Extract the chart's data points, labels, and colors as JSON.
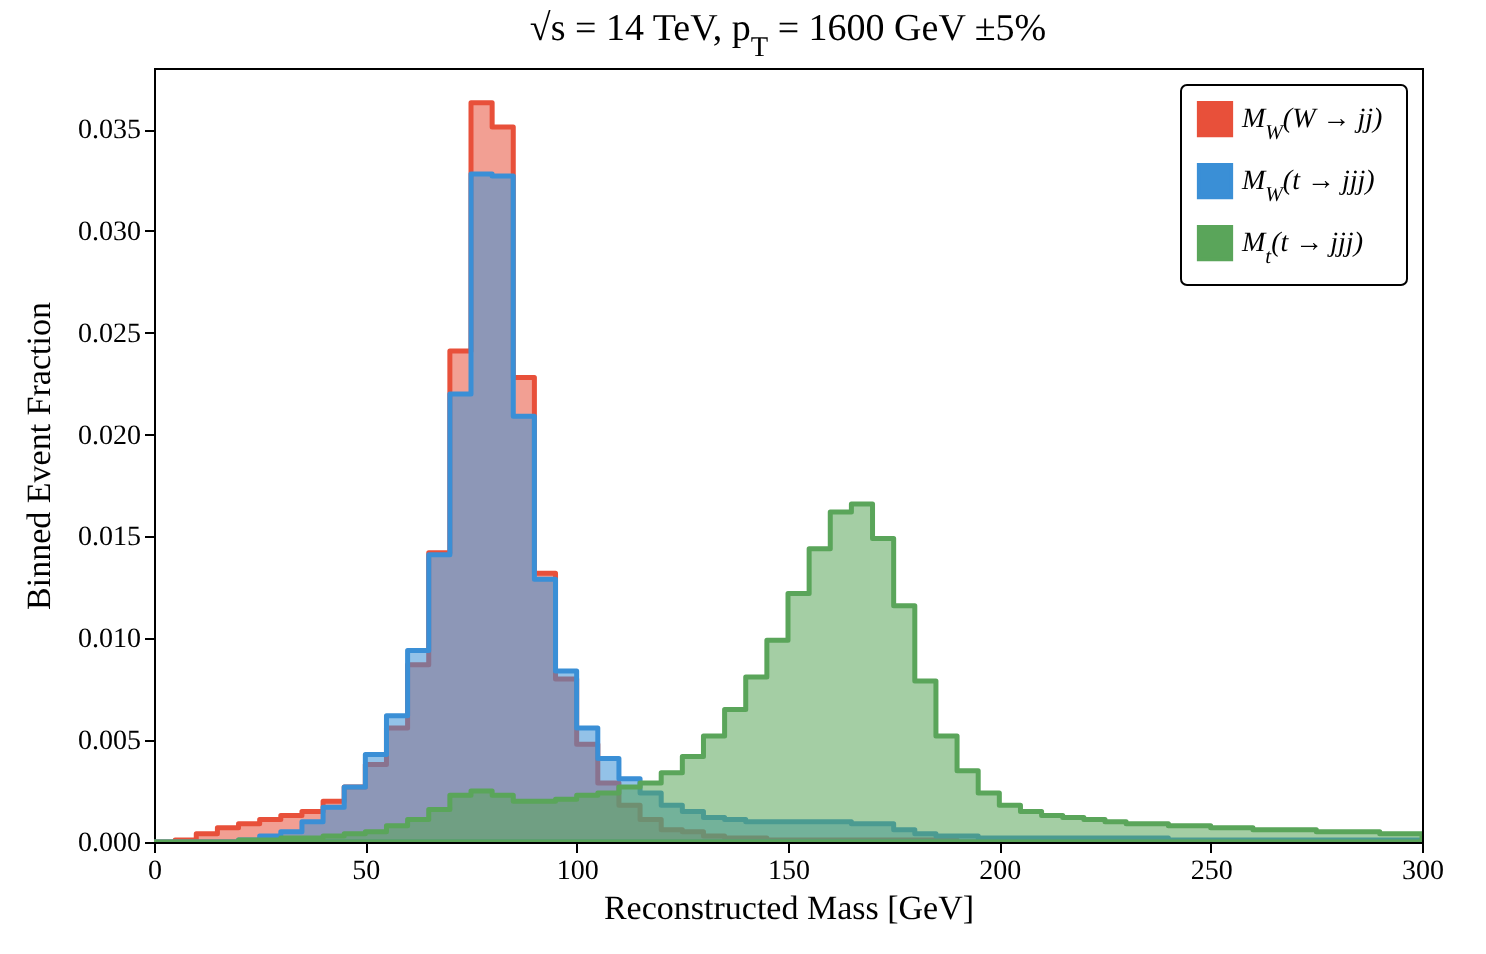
{
  "chart_data": {
    "type": "histogram",
    "title": "√s = 14 TeV, p$_{T}$ = 1600 GeV ±5%",
    "xlabel": "Reconstructed Mass [GeV]",
    "ylabel": "Binned Event Fraction",
    "bins": [
      0,
      5,
      10,
      15,
      20,
      25,
      30,
      35,
      40,
      45,
      50,
      55,
      60,
      65,
      70,
      75,
      80,
      85,
      90,
      95,
      100,
      105,
      110,
      115,
      120,
      125,
      130,
      135,
      140,
      145,
      150,
      155,
      160,
      165,
      170,
      175,
      180,
      185,
      190,
      195,
      200,
      205,
      210,
      215,
      220,
      225,
      230,
      235,
      240,
      245,
      250,
      255,
      260,
      265,
      270,
      275,
      280,
      285,
      290,
      295,
      300
    ],
    "series": [
      {
        "name": "M$_{W}$(W → jj)",
        "color": "#e8503a",
        "values": [
          0,
          0.0001,
          0.0004,
          0.0007,
          0.0009,
          0.0011,
          0.0013,
          0.0015,
          0.002,
          0.0027,
          0.0038,
          0.0056,
          0.0087,
          0.0142,
          0.0241,
          0.0363,
          0.0351,
          0.0228,
          0.0132,
          0.008,
          0.0048,
          0.0029,
          0.0018,
          0.0011,
          0.0006,
          0.0005,
          0.0003,
          0.0002,
          0.0002,
          0.0001,
          0.0001,
          0.0001,
          0.0001,
          0.0001,
          0.0001,
          0.0001,
          0.0001,
          0.0001,
          0,
          0,
          0,
          0,
          0,
          0,
          0,
          0,
          0,
          0,
          0,
          0,
          0,
          0,
          0,
          0,
          0,
          0,
          0,
          0,
          0,
          0
        ]
      },
      {
        "name": "M$_{W}$(t → jjj)",
        "color": "#3a8fd6",
        "values": [
          0,
          0,
          0,
          0,
          0.0001,
          0.0003,
          0.0005,
          0.001,
          0.0017,
          0.0027,
          0.0043,
          0.0062,
          0.0094,
          0.0141,
          0.022,
          0.0328,
          0.0327,
          0.0209,
          0.0129,
          0.0084,
          0.0056,
          0.0041,
          0.0031,
          0.0024,
          0.0018,
          0.0015,
          0.0012,
          0.0011,
          0.001,
          0.001,
          0.001,
          0.001,
          0.001,
          0.0009,
          0.0009,
          0.0006,
          0.0004,
          0.0003,
          0.0003,
          0.0002,
          0.0002,
          0.0002,
          0.0002,
          0.0002,
          0.0002,
          0.0002,
          0.0002,
          0.0002,
          0.0001,
          0.0001,
          0.0001,
          0.0001,
          0.0001,
          0.0001,
          0.0001,
          0.0001,
          0.0001,
          0.0001,
          0.0001,
          0.0001
        ]
      },
      {
        "name": "M$_{t}$(t → jjj)",
        "color": "#5aa55a",
        "values": [
          0,
          0,
          0,
          0,
          0.0001,
          0.0001,
          0.0002,
          0.0002,
          0.0003,
          0.0004,
          0.0005,
          0.0008,
          0.0011,
          0.0016,
          0.0023,
          0.0025,
          0.0023,
          0.002,
          0.002,
          0.0021,
          0.0023,
          0.0024,
          0.0027,
          0.0029,
          0.0034,
          0.0042,
          0.0052,
          0.0065,
          0.0081,
          0.0099,
          0.0122,
          0.0144,
          0.0162,
          0.0166,
          0.0149,
          0.0116,
          0.0079,
          0.0052,
          0.0035,
          0.0024,
          0.0018,
          0.0015,
          0.0013,
          0.0012,
          0.0011,
          0.001,
          0.0009,
          0.0009,
          0.0008,
          0.0008,
          0.0007,
          0.0007,
          0.0006,
          0.0006,
          0.0006,
          0.0005,
          0.0005,
          0.0005,
          0.0004,
          0.0004
        ]
      }
    ],
    "xlim": [
      0,
      300
    ],
    "xticks": [
      0,
      50,
      100,
      150,
      200,
      250,
      300
    ],
    "ylim": [
      0,
      0.038
    ],
    "yticks": [
      {
        "value": 0,
        "label": "0.000"
      },
      {
        "value": 0.005,
        "label": "0.005"
      },
      {
        "value": 0.01,
        "label": "0.010"
      },
      {
        "value": 0.015,
        "label": "0.015"
      },
      {
        "value": 0.02,
        "label": "0.020"
      },
      {
        "value": 0.025,
        "label": "0.025"
      },
      {
        "value": 0.03,
        "label": "0.030"
      },
      {
        "value": 0.035,
        "label": "0.035"
      }
    ],
    "legend": "top right"
  }
}
